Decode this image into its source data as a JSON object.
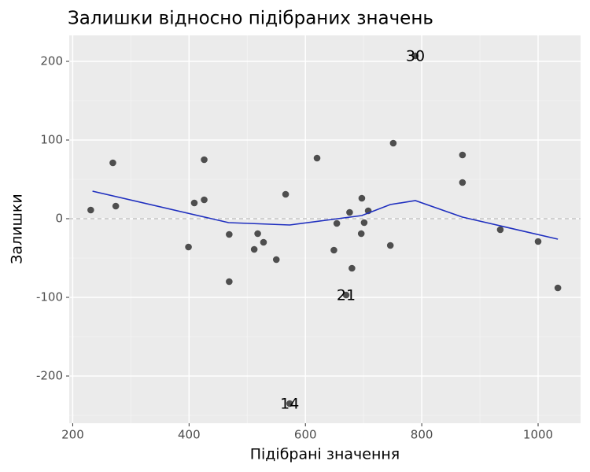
{
  "chart_data": {
    "type": "scatter",
    "title": "Залишки відносно підібраних значень",
    "x_label": "Підібрані значення",
    "y_label": "Залишки",
    "x": [
      231,
      269,
      274,
      399,
      409,
      426,
      426,
      469,
      469,
      512,
      518,
      528,
      550,
      566,
      573,
      620,
      649,
      654,
      670,
      676,
      680,
      696,
      697,
      701,
      708,
      746,
      751,
      789,
      870,
      870,
      935,
      1000,
      1034
    ],
    "values": [
      11,
      71,
      16,
      -36,
      20,
      75,
      24,
      -20,
      -80,
      -39,
      -19,
      -30,
      -52,
      31,
      -235,
      77,
      -40,
      -6,
      -97,
      8,
      -63,
      -19,
      26,
      -5,
      10,
      -34,
      96,
      207,
      81,
      46,
      -14,
      -29,
      -88
    ],
    "point_labels": [
      null,
      null,
      null,
      null,
      null,
      null,
      null,
      null,
      null,
      null,
      null,
      null,
      null,
      null,
      "14",
      null,
      null,
      null,
      "21",
      null,
      null,
      null,
      null,
      null,
      null,
      null,
      null,
      "30",
      null,
      null,
      null,
      null,
      null
    ],
    "color": "#333333",
    "smooth": {
      "x": [
        234,
        468,
        573,
        697,
        746,
        789,
        870,
        1034
      ],
      "values": [
        35,
        -5,
        -8,
        4,
        18,
        23,
        2,
        -26
      ],
      "color": "#1f2fbf"
    },
    "hline": 0,
    "xlim": [
      194,
      1073
    ],
    "ylim": [
      -260,
      233
    ],
    "xticks": [
      200,
      400,
      600,
      800,
      1000
    ],
    "yticks": [
      -200,
      -100,
      0,
      100,
      200
    ],
    "xminor": [
      300,
      500,
      700,
      900
    ],
    "yminor": [
      -250,
      -150,
      -50,
      50,
      150
    ],
    "grid": true
  }
}
